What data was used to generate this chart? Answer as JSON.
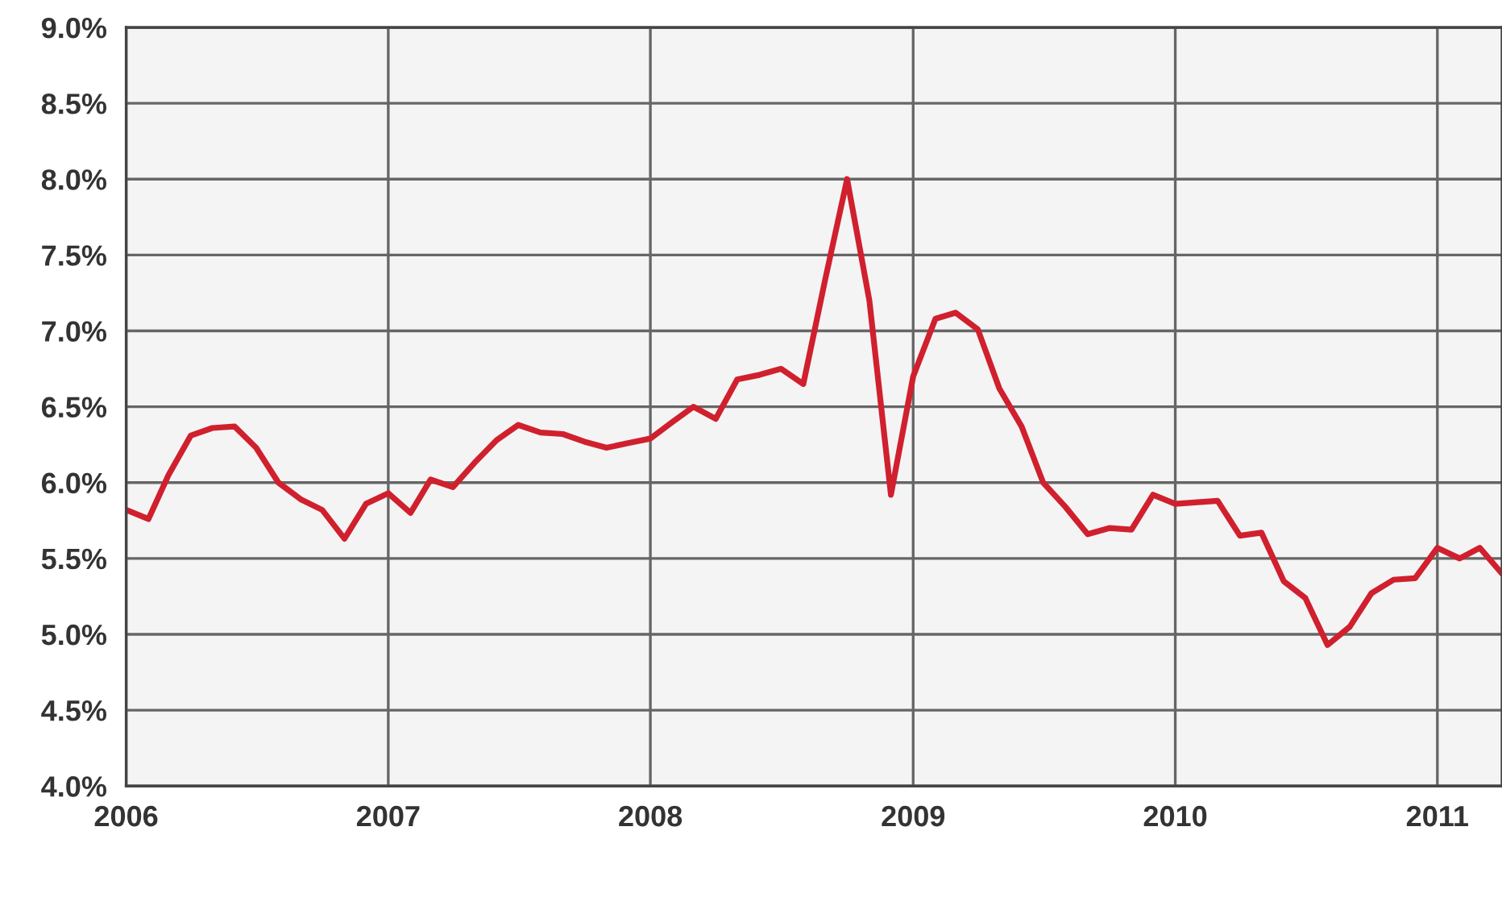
{
  "chart_data": {
    "type": "line",
    "x": [
      "2006-01",
      "2006-02",
      "2006-03",
      "2006-04",
      "2006-05",
      "2006-06",
      "2006-07",
      "2006-08",
      "2006-09",
      "2006-10",
      "2006-11",
      "2006-12",
      "2007-01",
      "2007-02",
      "2007-03",
      "2007-04",
      "2007-05",
      "2007-06",
      "2007-07",
      "2007-08",
      "2007-09",
      "2007-10",
      "2007-11",
      "2007-12",
      "2008-01",
      "2008-02",
      "2008-03",
      "2008-04",
      "2008-05",
      "2008-06",
      "2008-07",
      "2008-08",
      "2008-09",
      "2008-10",
      "2008-11",
      "2008-12",
      "2009-01",
      "2009-02",
      "2009-03",
      "2009-04",
      "2009-05",
      "2009-06",
      "2009-07",
      "2009-08",
      "2009-09",
      "2009-10",
      "2009-11",
      "2009-12",
      "2010-01",
      "2010-02",
      "2010-03",
      "2010-04",
      "2010-05",
      "2010-06",
      "2010-07",
      "2010-08",
      "2010-09",
      "2010-10",
      "2010-11",
      "2010-12",
      "2011-01",
      "2011-02",
      "2011-03",
      "2011-04"
    ],
    "series": [
      {
        "color": "#d0202e",
        "values": [
          5.82,
          5.76,
          6.05,
          6.31,
          6.36,
          6.37,
          6.23,
          6.0,
          5.89,
          5.82,
          5.63,
          5.86,
          5.93,
          5.8,
          6.02,
          5.97,
          6.13,
          6.28,
          6.38,
          6.33,
          6.32,
          6.27,
          6.23,
          6.26,
          6.29,
          6.4,
          6.5,
          6.42,
          6.68,
          6.71,
          6.75,
          6.65,
          7.35,
          8.0,
          7.2,
          5.92,
          6.7,
          7.08,
          7.12,
          7.01,
          6.62,
          6.37,
          6.0,
          5.84,
          5.66,
          5.7,
          5.69,
          5.92,
          5.86,
          5.87,
          5.88,
          5.65,
          5.67,
          5.35,
          5.24,
          4.93,
          5.05,
          5.27,
          5.36,
          5.37,
          5.57,
          5.5,
          5.57,
          5.4
        ]
      }
    ],
    "xlim": [
      "2006-01",
      "2011-04"
    ],
    "xticks": [
      {
        "value": "2006-01",
        "label": "2006"
      },
      {
        "value": "2007-01",
        "label": "2007"
      },
      {
        "value": "2008-01",
        "label": "2008"
      },
      {
        "value": "2009-01",
        "label": "2009"
      },
      {
        "value": "2010-01",
        "label": "2010"
      },
      {
        "value": "2011-01",
        "label": "2011"
      }
    ],
    "ylim": [
      4.0,
      9.0
    ],
    "yticks": [
      {
        "value": 4.0,
        "label": "4.0%"
      },
      {
        "value": 4.5,
        "label": "4.5%"
      },
      {
        "value": 5.0,
        "label": "5.0%"
      },
      {
        "value": 5.5,
        "label": "5.5%"
      },
      {
        "value": 6.0,
        "label": "6.0%"
      },
      {
        "value": 6.5,
        "label": "6.5%"
      },
      {
        "value": 7.0,
        "label": "7.0%"
      },
      {
        "value": 7.5,
        "label": "7.5%"
      },
      {
        "value": 8.0,
        "label": "8.0%"
      },
      {
        "value": 8.5,
        "label": "8.5%"
      },
      {
        "value": 9.0,
        "label": "9.0%"
      }
    ],
    "grid": true,
    "line_style": "solid",
    "marker": "none"
  }
}
